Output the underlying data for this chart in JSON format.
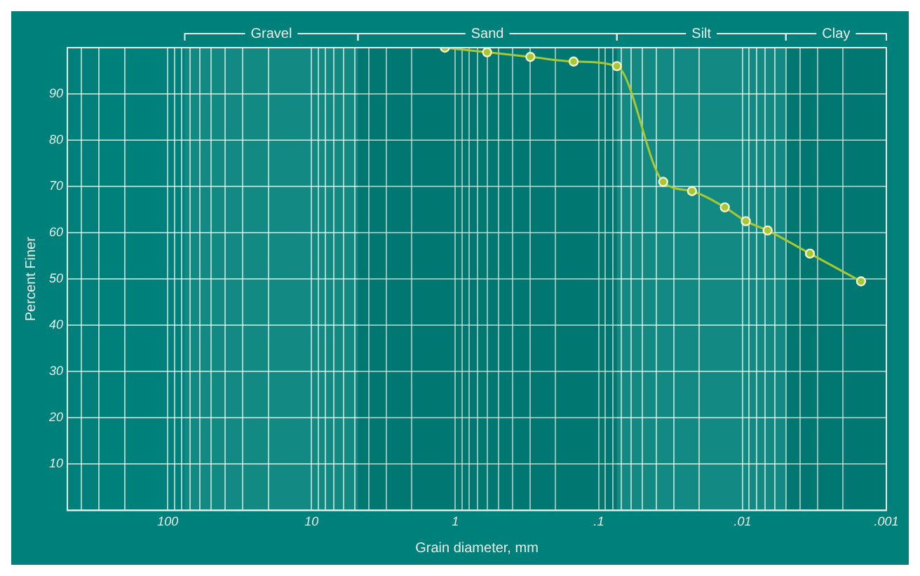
{
  "chart_data": {
    "type": "line",
    "xlabel": "Grain diameter, mm",
    "ylabel": "Percent Finer",
    "log": "x",
    "grid": true,
    "marker": "circle",
    "line_style": "solid",
    "color": "#a8c832",
    "x": [
      1.18,
      0.6,
      0.3,
      0.15,
      0.075,
      0.0357,
      0.0225,
      0.0133,
      0.0095,
      0.0067,
      0.0034,
      0.0015
    ],
    "values": [
      100,
      99,
      98,
      97,
      96,
      71,
      69,
      65.5,
      62.5,
      60.5,
      55.5,
      49.5
    ],
    "xlim": [
      500,
      0.001
    ],
    "xticks": [
      {
        "value": 0.001,
        "label": ".001"
      },
      {
        "value": 0.002,
        "label": null
      },
      {
        "value": 0.003,
        "label": null
      },
      {
        "value": 0.004,
        "label": null
      },
      {
        "value": 0.005,
        "label": null
      },
      {
        "value": 0.006,
        "label": null
      },
      {
        "value": 0.007,
        "label": null
      },
      {
        "value": 0.008,
        "label": null
      },
      {
        "value": 0.009,
        "label": null
      },
      {
        "value": 0.01,
        "label": ".01"
      },
      {
        "value": 0.02,
        "label": null
      },
      {
        "value": 0.03,
        "label": null
      },
      {
        "value": 0.04,
        "label": null
      },
      {
        "value": 0.05,
        "label": null
      },
      {
        "value": 0.06,
        "label": null
      },
      {
        "value": 0.07,
        "label": null
      },
      {
        "value": 0.08,
        "label": null
      },
      {
        "value": 0.09,
        "label": null
      },
      {
        "value": 0.1,
        "label": ".1"
      },
      {
        "value": 0.2,
        "label": null
      },
      {
        "value": 0.3,
        "label": null
      },
      {
        "value": 0.4,
        "label": null
      },
      {
        "value": 0.5,
        "label": null
      },
      {
        "value": 0.6,
        "label": null
      },
      {
        "value": 0.7,
        "label": null
      },
      {
        "value": 0.8,
        "label": null
      },
      {
        "value": 0.9,
        "label": null
      },
      1,
      {
        "value": 2,
        "label": null
      },
      {
        "value": 3,
        "label": null
      },
      {
        "value": 4,
        "label": null
      },
      {
        "value": 5,
        "label": null
      },
      {
        "value": 6,
        "label": null
      },
      {
        "value": 7,
        "label": null
      },
      {
        "value": 8,
        "label": null
      },
      {
        "value": 9,
        "label": null
      },
      10,
      {
        "value": 20,
        "label": null
      },
      {
        "value": 30,
        "label": null
      },
      {
        "value": 40,
        "label": null
      },
      {
        "value": 50,
        "label": null
      },
      {
        "value": 60,
        "label": null
      },
      {
        "value": 70,
        "label": null
      },
      {
        "value": 80,
        "label": null
      },
      {
        "value": 90,
        "label": null
      },
      100,
      {
        "value": 200,
        "label": null
      },
      {
        "value": 300,
        "label": null
      },
      {
        "value": 400,
        "label": null
      },
      {
        "value": 500,
        "label": null
      }
    ],
    "ylim": [
      0,
      100
    ],
    "yticks": [
      10,
      20,
      30,
      40,
      50,
      60,
      70,
      80,
      90
    ],
    "bands": [
      {
        "axis": "x",
        "from": 76.2,
        "to": 4.75,
        "label": "Gravel"
      },
      {
        "axis": "x",
        "from": 4.75,
        "to": 0.075,
        "label": "Sand"
      },
      {
        "axis": "x",
        "from": 0.075,
        "to": 0.005,
        "label": "Silt"
      },
      {
        "axis": "x",
        "from": 0.005,
        "to": 0.001,
        "label": "Clay"
      }
    ]
  }
}
